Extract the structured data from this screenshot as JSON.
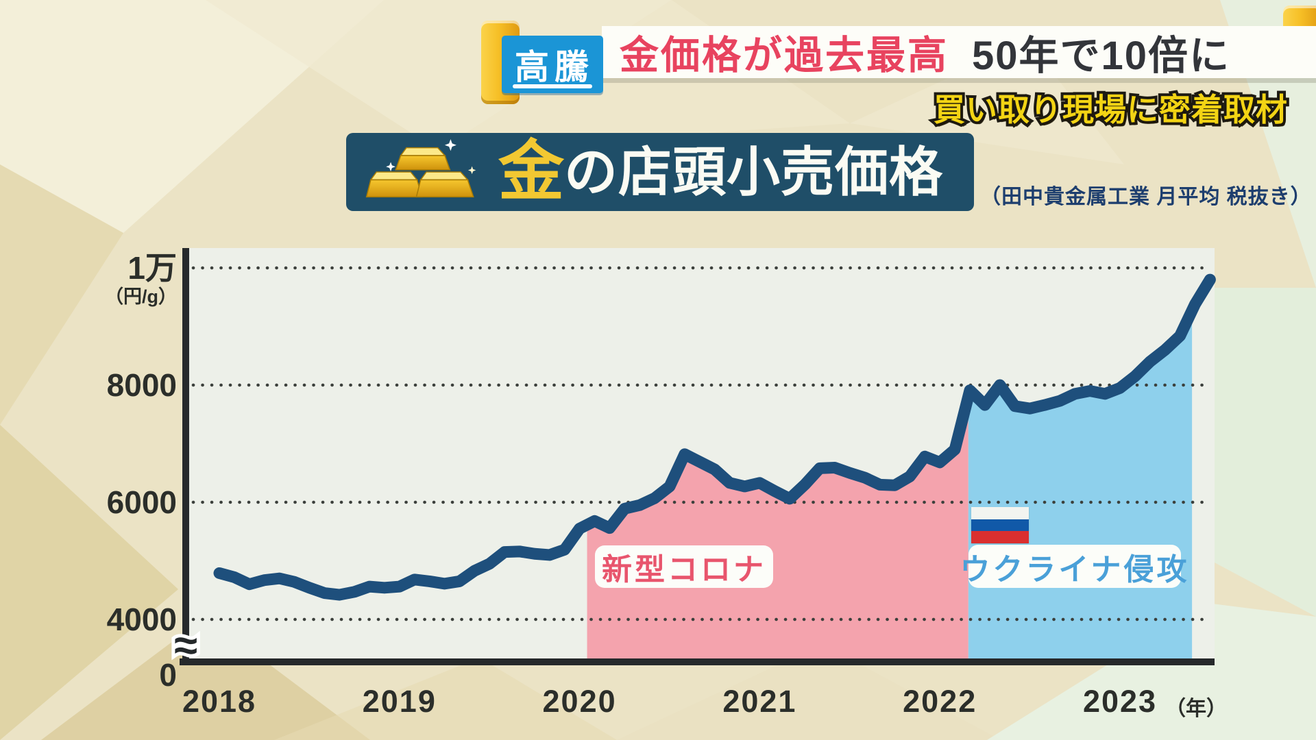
{
  "header": {
    "badge": "高騰",
    "headline_red": "金価格が過去最高",
    "headline_dark": "50年で10倍に",
    "subtitle": "買い取り現場に密着取材",
    "badge_color": "#1b95d6",
    "headline_red_color": "#e8435f"
  },
  "title": {
    "gold_char": "金",
    "rest": "の店頭小売価格",
    "note": "（田中貴金属工業 月平均 税抜き）",
    "banner_color": "#1f4e68",
    "gold_color": "#f2c832"
  },
  "chart_data": {
    "type": "line",
    "title": "金の店頭小売価格",
    "source_note": "田中貴金属工業 月平均 税抜き",
    "xlabel": "年",
    "ylabel": "円/g",
    "y_unit_label": "（円/g）",
    "ylim": [
      0,
      10400
    ],
    "grid": true,
    "y_axis_break": true,
    "axis_break_symbol": "≈",
    "y_ticks": [
      {
        "label": "1万",
        "value": 10000
      },
      {
        "label": "8000",
        "value": 8000
      },
      {
        "label": "6000",
        "value": 6000
      },
      {
        "label": "4000",
        "value": 4000
      },
      {
        "label": "0",
        "value": 0
      }
    ],
    "x_tick_years": [
      "2018",
      "2019",
      "2020",
      "2021",
      "2022",
      "2023"
    ],
    "x_year_suffix": "（年）",
    "start_month": "2018-01",
    "frequency": "monthly",
    "line_color": "#1e4f7c",
    "values": [
      4790,
      4720,
      4600,
      4670,
      4700,
      4640,
      4540,
      4450,
      4420,
      4470,
      4560,
      4540,
      4560,
      4680,
      4650,
      4610,
      4650,
      4830,
      4950,
      5150,
      5160,
      5120,
      5100,
      5190,
      5550,
      5680,
      5560,
      5890,
      5950,
      6070,
      6270,
      6820,
      6690,
      6560,
      6330,
      6270,
      6330,
      6190,
      6060,
      6300,
      6580,
      6590,
      6500,
      6420,
      6300,
      6290,
      6440,
      6780,
      6680,
      6900,
      7910,
      7660,
      8000,
      7640,
      7600,
      7660,
      7730,
      7850,
      7900,
      7850,
      7950,
      8150,
      8400,
      8600,
      8840,
      9380,
      9800
    ],
    "regions": [
      {
        "name": "新型コロナ",
        "fill": "#f4a3ad",
        "label_color": "#e8556d",
        "start_index": 24.5,
        "end_index": 49.9
      },
      {
        "name": "ウクライナ侵攻",
        "fill": "#8ed0ec",
        "label_color": "#4aa0d8",
        "start_index": 49.9,
        "end_index": 64.8,
        "flag": "russia",
        "flag_colors": [
          "#f2f4f0",
          "#1159a8",
          "#da2f2f"
        ]
      }
    ]
  }
}
